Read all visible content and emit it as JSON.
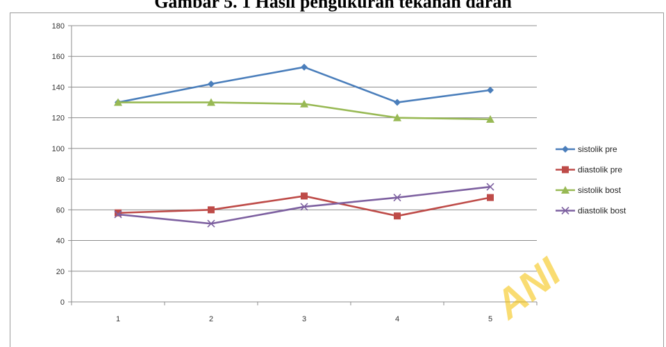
{
  "chart_data": {
    "type": "line",
    "title": "Gambar 5. 1 Hasil pengukuran tekanan darah",
    "xlabel": "",
    "ylabel": "",
    "categories": [
      "1",
      "2",
      "3",
      "4",
      "5"
    ],
    "ylim": [
      0,
      180
    ],
    "yticks": [
      0,
      20,
      40,
      60,
      80,
      100,
      120,
      140,
      160,
      180
    ],
    "grid": true,
    "legend_position": "right",
    "series": [
      {
        "name": "sistolik pre",
        "values": [
          130,
          142,
          153,
          130,
          138
        ],
        "color": "#4a7ebb",
        "marker": "diamond"
      },
      {
        "name": "diastolik pre",
        "values": [
          58,
          60,
          69,
          56,
          68
        ],
        "color": "#be4b48",
        "marker": "square"
      },
      {
        "name": "sistolik bost",
        "values": [
          130,
          130,
          129,
          120,
          119
        ],
        "color": "#98b954",
        "marker": "triangle"
      },
      {
        "name": "diastolik bost",
        "values": [
          57,
          51,
          62,
          68,
          75
        ],
        "color": "#7d60a0",
        "marker": "x"
      }
    ]
  },
  "watermark": "ANI"
}
